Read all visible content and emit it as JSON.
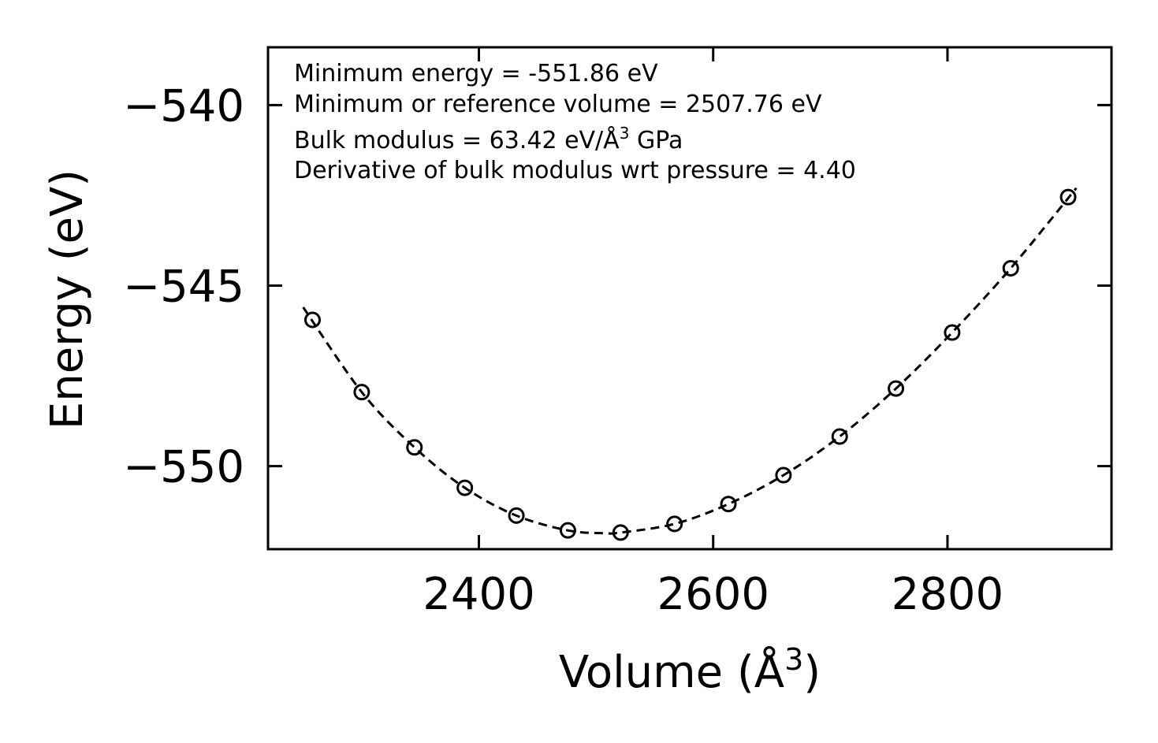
{
  "chart_data": {
    "type": "scatter",
    "title": "",
    "xlabel": "Volume (Å",
    "xlabel_sup": "3",
    "xlabel_end": ")",
    "ylabel": "Energy (eV)",
    "xlim": [
      2220,
      2940
    ],
    "ylim": [
      -552.3,
      -538.4
    ],
    "xticks": [
      2400,
      2600,
      2800
    ],
    "xtick_labels": [
      "2400",
      "2600",
      "2800"
    ],
    "yticks": [
      -540,
      -545,
      -550
    ],
    "ytick_labels": [
      "−540",
      "−545",
      "−550"
    ],
    "grid": false,
    "series": [
      {
        "name": "data",
        "style": "open-circle",
        "x": [
          2258,
          2300,
          2345,
          2388,
          2432,
          2476,
          2521,
          2567,
          2613,
          2660,
          2708,
          2756,
          2804,
          2854,
          2903
        ],
        "y": [
          -545.95,
          -547.95,
          -549.48,
          -550.6,
          -551.37,
          -551.78,
          -551.84,
          -551.6,
          -551.05,
          -550.25,
          -549.18,
          -547.85,
          -546.3,
          -544.52,
          -542.55
        ]
      },
      {
        "name": "fit",
        "style": "dashed-line",
        "x": [
          2250,
          2300,
          2345,
          2388,
          2432,
          2476,
          2507.76,
          2521,
          2567,
          2613,
          2660,
          2708,
          2756,
          2804,
          2854,
          2910
        ],
        "y": [
          -545.6,
          -547.95,
          -549.48,
          -550.6,
          -551.37,
          -551.78,
          -551.86,
          -551.84,
          -551.6,
          -551.05,
          -550.25,
          -549.18,
          -547.85,
          -546.3,
          -544.52,
          -542.3
        ]
      }
    ],
    "annotations": {
      "line1": "Minimum energy = -551.86 eV",
      "line2": "Minimum or reference volume = 2507.76 eV",
      "line3_pre": "Bulk modulus = 63.42 eV/Å",
      "line3_sup": "3",
      "line3_post": " GPa",
      "line4": "Derivative of bulk modulus wrt pressure = 4.40"
    }
  }
}
